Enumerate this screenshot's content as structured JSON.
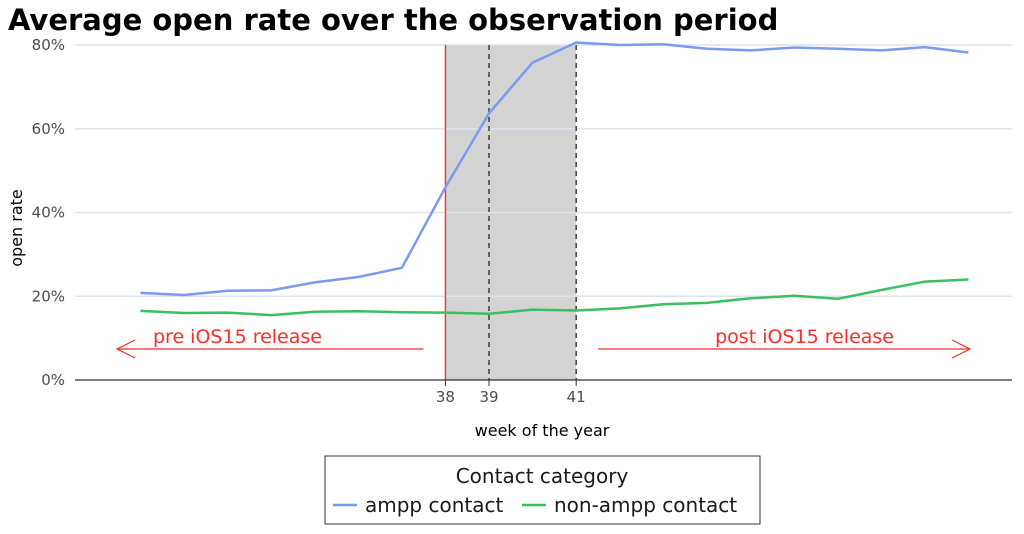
{
  "chart_data": {
    "type": "line",
    "title": "Average open rate over the observation period",
    "xlabel": "week of the year",
    "ylabel": "open rate",
    "x_ticks": [
      38,
      39,
      41
    ],
    "xlim": [
      29.5,
      51
    ],
    "ylim": [
      0,
      0.8
    ],
    "y_ticks": [
      0,
      0.2,
      0.4,
      0.6,
      0.8
    ],
    "y_tick_labels": [
      "0%",
      "20%",
      "40%",
      "60%",
      "80%"
    ],
    "grid": "horizontal",
    "x": [
      31,
      32,
      33,
      34,
      35,
      36,
      37,
      38,
      39,
      40,
      41,
      42,
      43,
      44,
      45,
      46,
      47,
      48,
      49,
      50
    ],
    "series": [
      {
        "name": "ampp contact",
        "color": "#7e9af0",
        "values": [
          0.208,
          0.203,
          0.213,
          0.214,
          0.233,
          0.246,
          0.268,
          0.46,
          0.637,
          0.758,
          0.806,
          0.8,
          0.802,
          0.791,
          0.787,
          0.794,
          0.791,
          0.787,
          0.795,
          0.782
        ]
      },
      {
        "name": "non-ampp contact",
        "color": "#3cbf63",
        "values": [
          0.165,
          0.16,
          0.161,
          0.155,
          0.163,
          0.164,
          0.162,
          0.161,
          0.158,
          0.168,
          0.166,
          0.171,
          0.181,
          0.184,
          0.195,
          0.201,
          0.194,
          0.215,
          0.235,
          0.24
        ]
      }
    ],
    "shaded_region": {
      "from": 38,
      "to": 41,
      "color": "#d3d3d3"
    },
    "reference_lines": [
      {
        "x": 38,
        "style": "solid",
        "color": "#ff2b2b"
      },
      {
        "x": 39,
        "style": "dashed",
        "color": "#333333"
      },
      {
        "x": 41,
        "style": "dashed",
        "color": "#333333"
      }
    ],
    "annotations": [
      {
        "text": "pre iOS15 release",
        "color": "#ff2b2b",
        "direction": "left",
        "x_from": 38,
        "x_to": 29.5
      },
      {
        "text": "post iOS15 release",
        "color": "#ff2b2b",
        "direction": "right",
        "x_from": 41,
        "x_to": 51
      }
    ],
    "legend": {
      "title": "Contact category",
      "position": "bottom",
      "entries": [
        "ampp contact",
        "non-ampp contact"
      ]
    }
  }
}
